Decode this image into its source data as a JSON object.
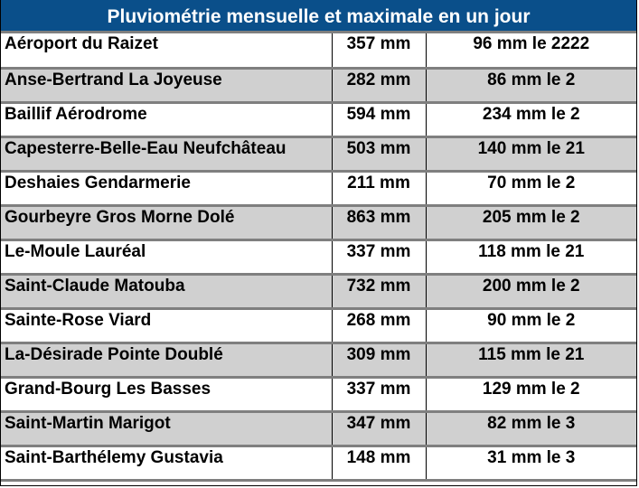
{
  "title": "Pluviométrie mensuelle et maximale en un jour",
  "colors": {
    "header_bg": "#0a4f8a",
    "header_text": "#ffffff",
    "alt_row_bg": "#d0d0d0",
    "row_separator": "#7f7f7f"
  },
  "rows": [
    {
      "station": "Aéroport du Raizet",
      "monthly": "357 mm",
      "max_day": "96 mm le 2222"
    },
    {
      "station": "Anse-Bertrand La Joyeuse",
      "monthly": "282 mm",
      "max_day": "86 mm le 2"
    },
    {
      "station": "Baillif Aérodrome",
      "monthly": "594 mm",
      "max_day": "234 mm le 2"
    },
    {
      "station": "Capesterre-Belle-Eau Neufchâteau",
      "monthly": "503 mm",
      "max_day": "140 mm le 21"
    },
    {
      "station": "Deshaies Gendarmerie",
      "monthly": "211 mm",
      "max_day": "70 mm le 2"
    },
    {
      "station": "Gourbeyre Gros Morne Dolé",
      "monthly": "863 mm",
      "max_day": "205 mm le 2"
    },
    {
      "station": "Le-Moule Lauréal",
      "monthly": "337 mm",
      "max_day": "118 mm le 21"
    },
    {
      "station": "Saint-Claude Matouba",
      "monthly": "732 mm",
      "max_day": "200 mm le 2"
    },
    {
      "station": "Sainte-Rose Viard",
      "monthly": "268 mm",
      "max_day": "90 mm le 2"
    },
    {
      "station": "La-Désirade Pointe Doublé",
      "monthly": "309 mm",
      "max_day": "115 mm le 21"
    },
    {
      "station": "Grand-Bourg Les Basses",
      "monthly": "337 mm",
      "max_day": "129 mm le 2"
    },
    {
      "station": "Saint-Martin Marigot",
      "monthly": "347 mm",
      "max_day": "82 mm le 3"
    },
    {
      "station": "Saint-Barthélemy Gustavia",
      "monthly": "148 mm",
      "max_day": "31 mm le 3"
    }
  ]
}
